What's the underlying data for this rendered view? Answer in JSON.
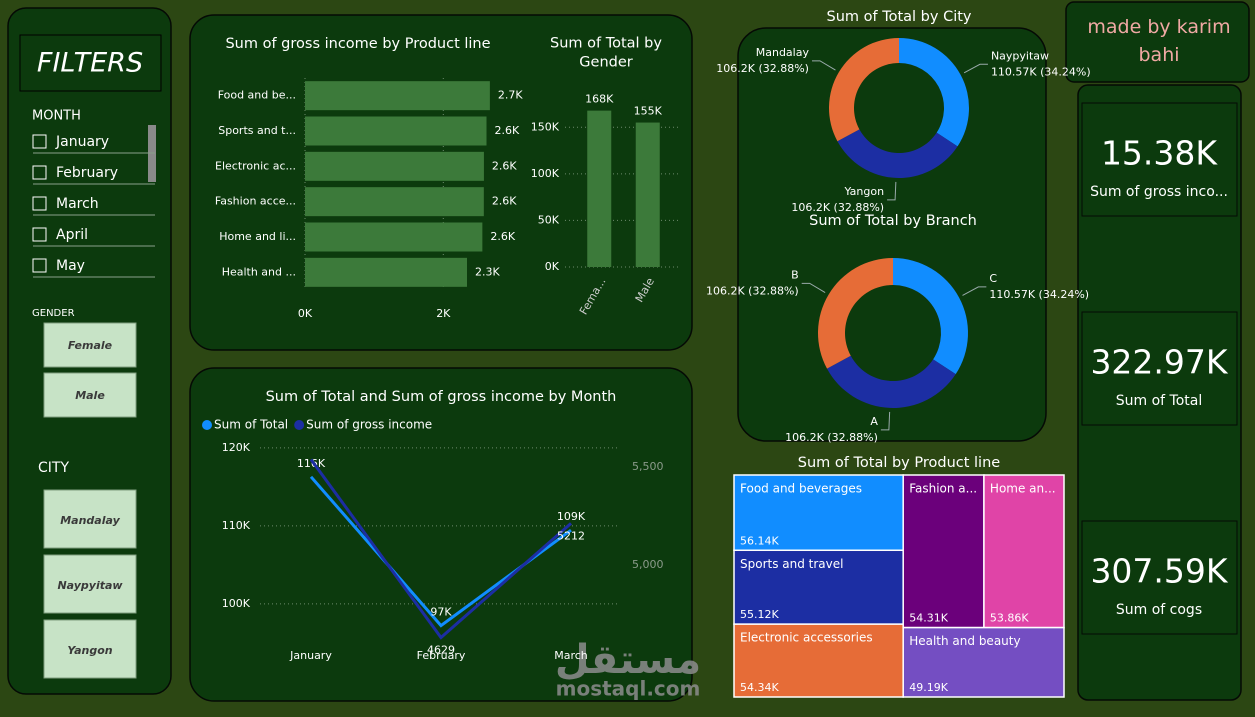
{
  "filters": {
    "title": "FILTERS",
    "month_label": "MONTH",
    "months": [
      "January",
      "February",
      "March",
      "April",
      "May"
    ],
    "gender_label": "GENDER",
    "genders": [
      "Female",
      "Male"
    ],
    "city_label": "CITY",
    "cities": [
      "Mandalay",
      "Naypyitaw",
      "Yangon"
    ]
  },
  "credit": "made by karim bahi",
  "cards": [
    {
      "value": "15.38K",
      "label": "Sum of gross inco..."
    },
    {
      "value": "322.97K",
      "label": "Sum of Total"
    },
    {
      "value": "307.59K",
      "label": "Sum of cogs"
    }
  ],
  "watermark": {
    "arabic": "مستقل",
    "latin": "mostaql.com"
  },
  "chart_data": [
    {
      "type": "bar",
      "orientation": "horizontal",
      "title": "Sum of gross income by Product line",
      "categories": [
        "Food and be...",
        "Sports and t...",
        "Electronic ac...",
        "Fashion acce...",
        "Home and li...",
        "Health and ..."
      ],
      "values": [
        2673.56,
        2624.9,
        2587.5,
        2585.99,
        2564.85,
        2342.56
      ],
      "value_labels": [
        "2.7K",
        "2.6K",
        "2.6K",
        "2.6K",
        "2.6K",
        "2.3K"
      ],
      "color": "#3c7a3a",
      "xlim": [
        0,
        2950
      ],
      "xticks": [
        {
          "value": 0,
          "label": "0K"
        },
        {
          "value": 2000,
          "label": "2K"
        }
      ],
      "grid": true
    },
    {
      "type": "bar",
      "orientation": "vertical",
      "title": "Sum of Total by Gender",
      "categories": [
        "Fema...",
        "Male"
      ],
      "values": [
        167882.9,
        155083.8
      ],
      "value_labels": [
        "168K",
        "155K"
      ],
      "color": "#3c7a3a",
      "ylim": [
        0,
        175000
      ],
      "yticks": [
        {
          "value": 0,
          "label": "0K"
        },
        {
          "value": 50000,
          "label": "50K"
        },
        {
          "value": 100000,
          "label": "100K"
        },
        {
          "value": 150000,
          "label": "150K"
        }
      ],
      "grid": true
    },
    {
      "type": "donut",
      "title": "Sum of Total by City",
      "categories": [
        "Naypyitaw",
        "Yangon",
        "Mandalay"
      ],
      "values": [
        110568.7,
        106200.4,
        106197.7
      ],
      "value_labels": [
        "110.57K (34.24%)",
        "106.2K (32.88%)",
        "106.2K (32.88%)"
      ],
      "colors": [
        "#118dff",
        "#1c2ea3",
        "#e66c37"
      ]
    },
    {
      "type": "donut",
      "title": "Sum of Total by Branch",
      "categories": [
        "C",
        "A",
        "B"
      ],
      "values": [
        110568.7,
        106200.4,
        106197.7
      ],
      "value_labels": [
        "110.57K (34.24%)",
        "106.2K (32.88%)",
        "106.2K (32.88%)"
      ],
      "colors": [
        "#118dff",
        "#1c2ea3",
        "#e66c37"
      ]
    },
    {
      "type": "treemap",
      "title": "Sum of Total by Product line",
      "categories": [
        "Food and beverages",
        "Sports and travel",
        "Electronic accessories",
        "Fashion a...",
        "Home an...",
        "Health and beauty"
      ],
      "values": [
        56144.8,
        55122.8,
        54337.5,
        54305.9,
        53861.9,
        49193.7
      ],
      "value_labels": [
        "56.14K",
        "55.12K",
        "54.34K",
        "54.31K",
        "53.86K",
        "49.19K"
      ],
      "colors": [
        "#118dff",
        "#1c2ea3",
        "#e66c37",
        "#6b007b",
        "#e044a7",
        "#744ec2"
      ]
    },
    {
      "type": "line",
      "title": "Sum of Total and Sum of gross income by Month",
      "categories": [
        "January",
        "February",
        "March"
      ],
      "series": [
        {
          "name": "Sum of Total",
          "color": "#118dff",
          "values": [
            116291.9,
            97219.4,
            109455.5
          ],
          "value_labels": [
            "116K",
            "97K",
            "109K"
          ]
        },
        {
          "name": "Sum of gross income",
          "color": "#1c2ea3",
          "axis": "y2",
          "values": [
            5537.7,
            4629.5,
            5212.2
          ],
          "value_labels": [
            null,
            "4629",
            "5212"
          ]
        }
      ],
      "ylim": [
        95500,
        120500
      ],
      "yticks": [
        {
          "value": 100000,
          "label": "100K"
        },
        {
          "value": 110000,
          "label": "110K"
        },
        {
          "value": 120000,
          "label": "120K"
        }
      ],
      "y2lim": [
        4622,
        5617
      ],
      "y2ticks": [
        {
          "value": 5000,
          "label": "5,000"
        },
        {
          "value": 5500,
          "label": "5,500"
        }
      ],
      "legend": "top-left",
      "grid": true
    }
  ]
}
